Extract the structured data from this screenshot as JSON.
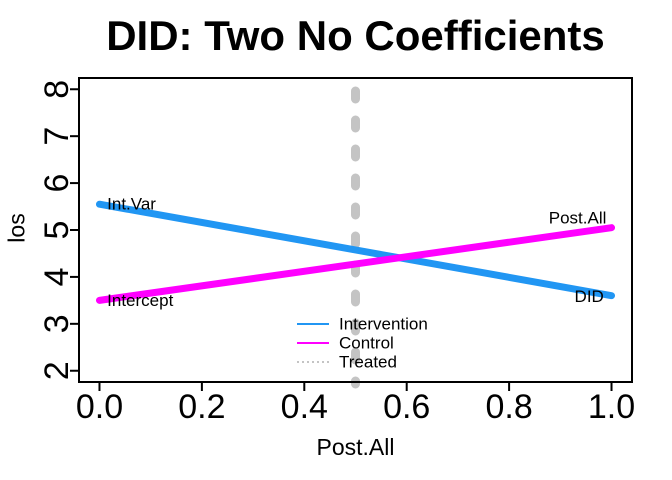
{
  "chart_data": {
    "type": "line",
    "title": "DID: Two No Coefficients",
    "xlabel": "Post.All",
    "ylabel": "los",
    "xlim": [
      -0.04,
      1.04
    ],
    "ylim": [
      1.76,
      8.24
    ],
    "x_tick_values": [
      0,
      0.2,
      0.4,
      0.6,
      0.8,
      1.0
    ],
    "x_tick_labels": [
      "0.0",
      "0.2",
      "0.4",
      "0.6",
      "0.8",
      "1.0"
    ],
    "y_tick_values": [
      2,
      3,
      4,
      5,
      6,
      7,
      8
    ],
    "y_tick_labels": [
      "2",
      "3",
      "4",
      "5",
      "6",
      "7",
      "8"
    ],
    "grid": false,
    "series": [
      {
        "name": "Intervention",
        "color": "#2196F3",
        "style": "solid",
        "line_width": 7,
        "x": [
          0,
          1
        ],
        "y": [
          5.55,
          3.6
        ]
      },
      {
        "name": "Control",
        "color": "#FF00FF",
        "style": "solid",
        "line_width": 7,
        "x": [
          0,
          1
        ],
        "y": [
          3.5,
          5.05
        ]
      },
      {
        "name": "Treated",
        "color": "#C4C4C4",
        "style": "dashed",
        "line_width": 9,
        "vertical_x": 0.5
      }
    ],
    "annotations": [
      {
        "text": "Int.Var",
        "x": 0.015,
        "y": 5.55,
        "anchor": "start"
      },
      {
        "text": "Intercept",
        "x": 0.015,
        "y": 3.5,
        "anchor": "start"
      },
      {
        "text": "Post.All",
        "x": 0.99,
        "y": 5.26,
        "anchor": "end"
      },
      {
        "text": "DID",
        "x": 0.985,
        "y": 3.585,
        "anchor": "end"
      }
    ],
    "legend": {
      "position": "bottom-center-inside",
      "border": "none",
      "entries": [
        {
          "label": "Intervention",
          "color": "#2196F3",
          "style": "solid"
        },
        {
          "label": "Control",
          "color": "#FF00FF",
          "style": "solid"
        },
        {
          "label": "Treated",
          "color": "#C4C4C4",
          "style": "dotted"
        }
      ]
    },
    "colors": {
      "axis": "#000000",
      "background": "#ffffff",
      "intervention": "#2196F3",
      "control": "#FF00FF",
      "treated": "#C4C4C4"
    }
  }
}
